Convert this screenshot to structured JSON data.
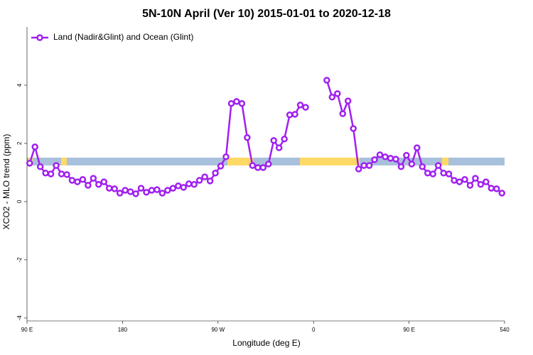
{
  "chart_data": {
    "type": "line",
    "title": "5N-10N April (Ver 10)   2015-01-01 to 2020-12-18",
    "xlabel": "Longitude (deg E)",
    "ylabel": "XCO2 - MLO trend (ppm)",
    "legend_loc": "upper left",
    "xlim": [
      90,
      540
    ],
    "ylim": [
      -4.1,
      6
    ],
    "xticks": [
      {
        "value": 90,
        "label": "90 E"
      },
      180,
      {
        "value": 270,
        "label": "90 W"
      },
      {
        "value": 360,
        "label": "0"
      },
      {
        "value": 450,
        "label": "90 E"
      },
      540
    ],
    "yticks": [
      -4,
      -2,
      0,
      2,
      4
    ],
    "x": [
      92.5,
      97.5,
      102.5,
      107.5,
      112.5,
      117.5,
      122.5,
      127.5,
      132.5,
      137.5,
      142.5,
      147.5,
      152.5,
      157.5,
      162.5,
      167.5,
      172.5,
      177.5,
      182.5,
      187.5,
      192.5,
      197.5,
      202.5,
      207.5,
      212.5,
      217.5,
      222.5,
      227.5,
      232.5,
      237.5,
      242.5,
      247.5,
      252.5,
      257.5,
      262.5,
      267.5,
      272.5,
      277.5,
      282.5,
      287.5,
      292.5,
      297.5,
      302.5,
      307.5,
      312.5,
      317.5,
      322.5,
      327.5,
      332.5,
      337.5,
      342.5,
      347.5,
      352.5,
      357.5,
      362.5,
      367.5,
      372.5,
      377.5,
      382.5,
      387.5,
      392.5,
      397.5,
      402.5,
      407.5,
      412.5,
      417.5,
      422.5,
      427.5,
      432.5,
      437.5,
      442.5,
      447.5,
      452.5,
      457.5,
      462.5,
      467.5,
      472.5,
      477.5,
      482.5,
      487.5,
      492.5,
      497.5,
      502.5,
      507.5,
      512.5,
      517.5,
      522.5,
      527.5,
      532.5,
      537.5
    ],
    "series": [
      {
        "name": "Land (Nadir&Glint) and Ocean (Glint)",
        "color": "#a020f0",
        "values": [
          1.32,
          1.88,
          1.2,
          0.98,
          0.95,
          1.24,
          0.95,
          0.93,
          0.73,
          0.68,
          0.76,
          0.56,
          0.8,
          0.59,
          0.68,
          0.46,
          0.44,
          0.29,
          0.39,
          0.34,
          0.27,
          0.46,
          0.32,
          0.39,
          0.41,
          0.29,
          0.39,
          0.46,
          0.54,
          0.49,
          0.61,
          0.59,
          0.73,
          0.85,
          0.71,
          0.98,
          1.22,
          1.54,
          3.37,
          3.44,
          3.37,
          2.2,
          1.24,
          1.17,
          1.17,
          1.29,
          2.1,
          1.85,
          2.15,
          2.98,
          3.0,
          3.32,
          3.24,
          null,
          null,
          null,
          4.17,
          3.59,
          3.71,
          3.02,
          3.46,
          2.51,
          1.12,
          1.24,
          1.24,
          1.44,
          1.61,
          1.54,
          1.49,
          1.46,
          1.2,
          1.59,
          1.29,
          1.85,
          1.2,
          0.98,
          0.95,
          1.24,
          0.98,
          0.95,
          0.73,
          0.68,
          0.76,
          0.56,
          0.8,
          0.59,
          0.68,
          0.46,
          0.44,
          0.29
        ]
      }
    ]
  }
}
